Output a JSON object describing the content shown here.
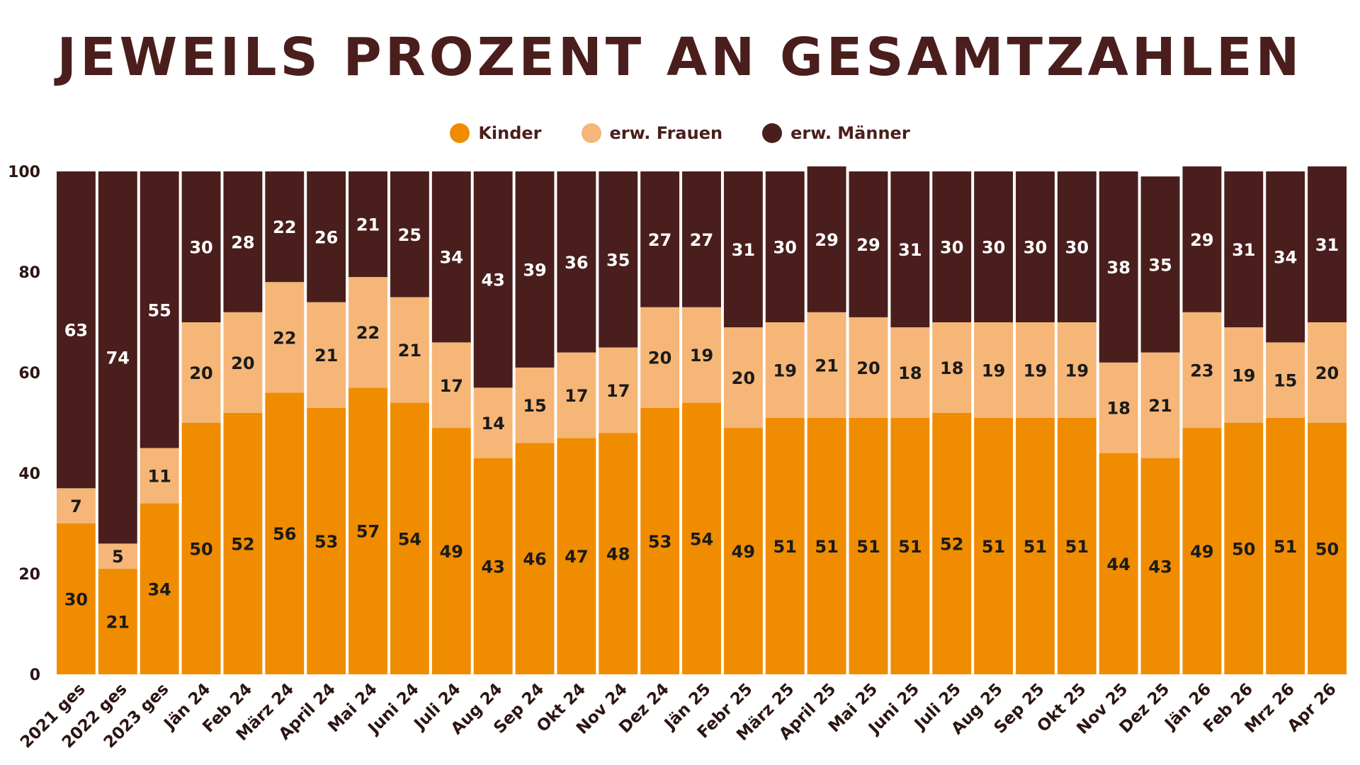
{
  "chart_data": {
    "type": "bar",
    "stacked": true,
    "title": "JEWEILS PROZENT AN GESAMTZAHLEN",
    "xlabel": "",
    "ylabel": "",
    "ylim": [
      0,
      100
    ],
    "yticks": [
      0,
      20,
      40,
      60,
      80,
      100
    ],
    "legend_position": "top-center",
    "grid": false,
    "categories": [
      "2021 ges",
      "2022 ges",
      "2023 ges",
      "Jän 24",
      "Feb 24",
      "März 24",
      "April 24",
      "Mai 24",
      "Juni 24",
      "Juli 24",
      "Aug 24",
      "Sep 24",
      "Okt 24",
      "Nov 24",
      "Dez 24",
      "Jän 25",
      "Febr 25",
      "März 25",
      "April 25",
      "Mai 25",
      "Juni 25",
      "Juli 25",
      "Aug 25",
      "Sep 25",
      "Okt 25",
      "Nov 25",
      "Dez 25",
      "Jän 26",
      "Feb 26",
      "Mrz 26",
      "Apr 26"
    ],
    "series": [
      {
        "name": "Kinder",
        "color": "#f08c00",
        "values": [
          30,
          21,
          34,
          50,
          52,
          56,
          53,
          57,
          54,
          49,
          43,
          46,
          47,
          48,
          53,
          54,
          49,
          51,
          51,
          51,
          51,
          52,
          51,
          51,
          51,
          44,
          43,
          49,
          50,
          51,
          50
        ]
      },
      {
        "name": "erw. Frauen",
        "color": "#f5b677",
        "values": [
          7,
          5,
          11,
          20,
          20,
          22,
          21,
          22,
          21,
          17,
          14,
          15,
          17,
          17,
          20,
          19,
          20,
          19,
          21,
          20,
          18,
          18,
          19,
          19,
          19,
          18,
          21,
          23,
          19,
          15,
          20
        ]
      },
      {
        "name": "erw. Männer",
        "color": "#4a1e1c",
        "values": [
          63,
          74,
          55,
          30,
          28,
          22,
          26,
          21,
          25,
          34,
          43,
          39,
          36,
          35,
          27,
          27,
          31,
          30,
          29,
          29,
          31,
          30,
          30,
          30,
          30,
          38,
          35,
          29,
          31,
          34,
          31
        ]
      }
    ]
  }
}
